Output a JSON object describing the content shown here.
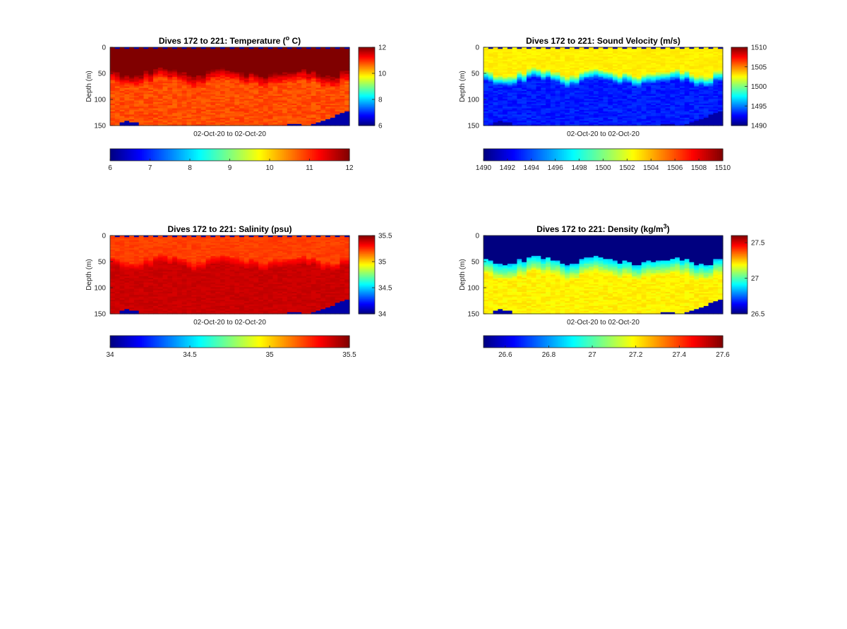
{
  "chart_data": [
    {
      "type": "heatmap",
      "id": "temperature",
      "title_main": "Dives 172 to 221: Temperature (",
      "title_sup": "o",
      "title_tail": " C)",
      "xlabel": "02-Oct-20 to 02-Oct-20",
      "ylabel": "Depth (m)",
      "ylim": [
        0,
        150
      ],
      "yticks": [
        "0",
        "50",
        "100",
        "150"
      ],
      "clim": [
        6,
        12
      ],
      "colorbar_v_ticks": [
        "6",
        "8",
        "10",
        "12"
      ],
      "colorbar_h_ticks": [
        "6",
        "7",
        "8",
        "9",
        "10",
        "11",
        "12"
      ],
      "dives": [
        172,
        221
      ],
      "profile": {
        "surface": 12,
        "mixed_depth": 48,
        "deep": 10.8
      },
      "colormap": "jet"
    },
    {
      "type": "heatmap",
      "id": "sound-velocity",
      "title_main": "Dives 172 to 221: Sound Velocity (m/s)",
      "title_sup": "",
      "title_tail": "",
      "xlabel": "02-Oct-20 to 02-Oct-20",
      "ylabel": "Depth (m)",
      "ylim": [
        0,
        150
      ],
      "yticks": [
        "0",
        "50",
        "100",
        "150"
      ],
      "clim": [
        1490,
        1510
      ],
      "colorbar_v_ticks": [
        "1490",
        "1495",
        "1500",
        "1505",
        "1510"
      ],
      "colorbar_h_ticks": [
        "1490",
        "1492",
        "1494",
        "1496",
        "1498",
        "1500",
        "1502",
        "1504",
        "1506",
        "1508",
        "1510"
      ],
      "dives": [
        172,
        221
      ],
      "profile": {
        "surface": 1503,
        "mixed_depth": 48,
        "deep": 1493
      },
      "colormap": "jet"
    },
    {
      "type": "heatmap",
      "id": "salinity",
      "title_main": "Dives 172 to 221: Salinity (psu)",
      "title_sup": "",
      "title_tail": "",
      "xlabel": "02-Oct-20 to 02-Oct-20",
      "ylabel": "Depth (m)",
      "ylim": [
        0,
        150
      ],
      "yticks": [
        "0",
        "50",
        "100",
        "150"
      ],
      "clim": [
        34,
        35.5
      ],
      "colorbar_v_ticks": [
        "34",
        "34.5",
        "35",
        "35.5"
      ],
      "colorbar_h_ticks": [
        "34",
        "34.5",
        "35",
        "35.5"
      ],
      "dives": [
        172,
        221
      ],
      "profile": {
        "surface": 35.25,
        "mixed_depth": 45,
        "deep": 35.38
      },
      "colormap": "jet"
    },
    {
      "type": "heatmap",
      "id": "density",
      "title_main": "Dives 172 to 221: Density (kg/m",
      "title_sup": "3",
      "title_tail": ")",
      "xlabel": "02-Oct-20 to 02-Oct-20",
      "ylabel": "Depth (m)",
      "ylim": [
        0,
        150
      ],
      "yticks": [
        "0",
        "50",
        "100",
        "150"
      ],
      "clim": [
        26.5,
        27.6
      ],
      "colorbar_v_ticks": [
        "27.5",
        "27",
        "26.5"
      ],
      "colorbar_v_values": [
        27.5,
        27.0,
        26.5
      ],
      "colorbar_h_ticks": [
        "26.6",
        "26.8",
        "27",
        "27.2",
        "27.4",
        "27.6"
      ],
      "colorbar_h_values": [
        26.6,
        26.8,
        27.0,
        27.2,
        27.4,
        27.6
      ],
      "dives": [
        172,
        221
      ],
      "profile": {
        "surface": 26.5,
        "mixed_depth": 48,
        "deep": 27.15
      },
      "colormap": "jet"
    }
  ]
}
